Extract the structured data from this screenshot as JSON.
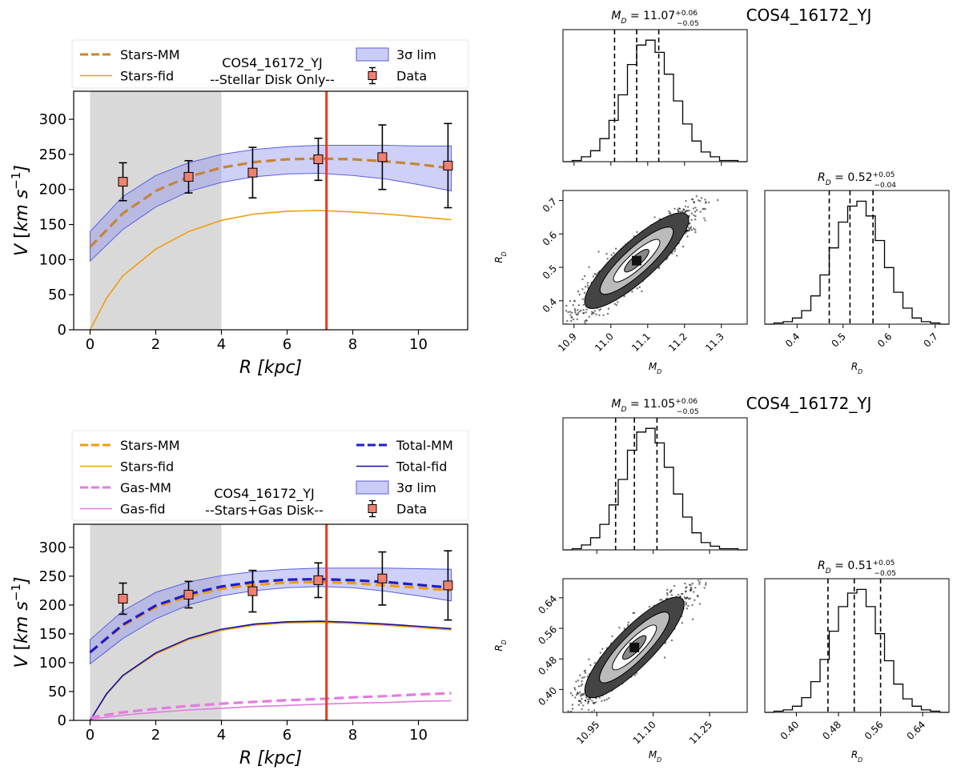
{
  "chart_data": [
    {
      "type": "line",
      "panel": "top-left",
      "title_lines": [
        "COS4_16172_YJ",
        "--Stellar Disk Only--"
      ],
      "xlabel": "R [kpc]",
      "ylabel": "V [km s⁻¹]",
      "xlim": [
        -0.5,
        11.5
      ],
      "ylim": [
        0,
        340
      ],
      "xticks": [
        0,
        2,
        4,
        6,
        8,
        10
      ],
      "yticks": [
        0,
        50,
        100,
        150,
        200,
        250,
        300
      ],
      "shaded_region_x": [
        0,
        4
      ],
      "vline_x": 7.2,
      "data_points": {
        "name": "Data",
        "x": [
          1,
          3,
          4.95,
          6.95,
          8.9,
          10.9
        ],
        "y": [
          211,
          218,
          224,
          243,
          246,
          234
        ],
        "yerr": [
          27,
          23,
          36,
          30,
          46,
          60
        ]
      },
      "series": [
        {
          "name": "Stars-MM",
          "style": "dashed",
          "color": "#c68436",
          "x": [
            0,
            1,
            2,
            3,
            4,
            5,
            6,
            7,
            8,
            9,
            10,
            11
          ],
          "y": [
            118,
            166,
            198,
            218,
            231,
            239,
            243,
            244,
            243,
            240,
            236,
            230
          ]
        },
        {
          "name": "Stars-fid",
          "style": "solid",
          "color": "#f29c0f",
          "x": [
            0,
            0.5,
            1,
            2,
            3,
            4,
            5,
            6,
            7,
            8,
            9,
            10,
            11
          ],
          "y": [
            0,
            45,
            77,
            115,
            140,
            156,
            165,
            169,
            170,
            168,
            165,
            161,
            157
          ]
        }
      ],
      "band": {
        "name": "3σ lim",
        "color": "#8a8fef",
        "x": [
          0,
          1,
          2,
          3,
          4,
          5,
          6,
          7,
          8,
          9,
          10,
          11
        ],
        "lower": [
          98,
          143,
          175,
          197,
          210,
          218,
          222,
          223,
          220,
          215,
          207,
          198
        ],
        "upper": [
          140,
          190,
          220,
          238,
          250,
          257,
          261,
          263,
          263,
          263,
          262,
          262
        ]
      },
      "legend_left": [
        "Stars-MM",
        "Stars-fid"
      ],
      "legend_right": [
        "3σ lim",
        "Data"
      ]
    },
    {
      "type": "corner",
      "panel": "top-right",
      "title": "COS4_16172_YJ",
      "param_titles": [
        {
          "label": "M_D",
          "value": "11.07",
          "plus": "+0.06",
          "minus": "−0.05"
        },
        {
          "label": "R_D",
          "value": "0.52",
          "plus": "+0.05",
          "minus": "−0.04"
        }
      ],
      "axis_labels": [
        "M_D",
        "R_D"
      ],
      "m_range": [
        10.87,
        11.37
      ],
      "m_ticks": [
        10.9,
        11.0,
        11.1,
        11.2,
        11.3
      ],
      "m_tick_labels": [
        "10.9",
        "11.0",
        "11.1",
        "11.2",
        "11.3"
      ],
      "r_range": [
        0.33,
        0.73
      ],
      "r_ticks": [
        0.4,
        0.5,
        0.6,
        0.7
      ],
      "r_tick_labels": [
        "0.4",
        "0.5",
        "0.6",
        "0.7"
      ],
      "m_hist": [
        0,
        0.01,
        0.04,
        0.09,
        0.19,
        0.34,
        0.55,
        0.8,
        0.96,
        1.0,
        0.9,
        0.72,
        0.5,
        0.31,
        0.17,
        0.08,
        0.04,
        0.01,
        0.01,
        0
      ],
      "r_hist": [
        0,
        0.01,
        0.02,
        0.05,
        0.11,
        0.23,
        0.4,
        0.62,
        0.83,
        0.96,
        1.0,
        0.88,
        0.68,
        0.46,
        0.26,
        0.13,
        0.05,
        0.02,
        0.01,
        0
      ],
      "m_quantiles": [
        11.01,
        11.07,
        11.13
      ],
      "r_quantiles": [
        0.47,
        0.515,
        0.565
      ],
      "joint_center": [
        11.07,
        0.52
      ],
      "joint_slope": 1.0
    },
    {
      "type": "line",
      "panel": "bottom-left",
      "title_lines": [
        "COS4_16172_YJ",
        "--Stars+Gas Disk--"
      ],
      "xlabel": "R [kpc]",
      "ylabel": "V [km s⁻¹]",
      "xlim": [
        -0.5,
        11.5
      ],
      "ylim": [
        0,
        340
      ],
      "xticks": [
        0,
        2,
        4,
        6,
        8,
        10
      ],
      "yticks": [
        0,
        50,
        100,
        150,
        200,
        250,
        300
      ],
      "shaded_region_x": [
        0,
        4
      ],
      "vline_x": 7.2,
      "data_points": {
        "name": "Data",
        "x": [
          1,
          3,
          4.95,
          6.95,
          8.9,
          10.9
        ],
        "y": [
          211,
          218,
          224,
          243,
          246,
          234
        ],
        "yerr": [
          27,
          23,
          36,
          30,
          46,
          60
        ]
      },
      "series": [
        {
          "name": "Stars-MM",
          "style": "dashed",
          "color": "#f29c0f",
          "x": [
            0,
            1,
            2,
            3,
            4,
            5,
            6,
            7,
            8,
            9,
            10,
            11
          ],
          "y": [
            118,
            164,
            196,
            215,
            228,
            235,
            239,
            240,
            238,
            234,
            230,
            225
          ]
        },
        {
          "name": "Stars-fid",
          "style": "solid",
          "color": "#f29c0f",
          "x": [
            0,
            0.5,
            1,
            2,
            3,
            4,
            5,
            6,
            7,
            8,
            9,
            10,
            11
          ],
          "y": [
            0,
            45,
            77,
            115,
            140,
            156,
            165,
            169,
            170,
            168,
            165,
            161,
            157
          ]
        },
        {
          "name": "Gas-MM",
          "style": "dashed",
          "color": "#e27ce0",
          "x": [
            0,
            1,
            2,
            3,
            4,
            5,
            6,
            7,
            8,
            9,
            10,
            11
          ],
          "y": [
            5,
            14,
            20,
            25,
            29,
            32,
            35,
            37,
            40,
            42,
            45,
            47
          ]
        },
        {
          "name": "Gas-fid",
          "style": "solid",
          "color": "#e27ce0",
          "x": [
            0,
            1,
            2,
            3,
            4,
            5,
            6,
            7,
            8,
            9,
            10,
            11
          ],
          "y": [
            2,
            9,
            14,
            18,
            21,
            24,
            26,
            28,
            30,
            31,
            33,
            34
          ]
        },
        {
          "name": "Total-MM",
          "style": "dashed",
          "color": "#1c1ccf",
          "x": [
            0,
            1,
            2,
            3,
            4,
            5,
            6,
            7,
            8,
            9,
            10,
            11
          ],
          "y": [
            118,
            166,
            199,
            219,
            232,
            240,
            244,
            245,
            243,
            240,
            235,
            230
          ]
        },
        {
          "name": "Total-fid",
          "style": "solid",
          "color": "#1010a8",
          "x": [
            0,
            0.5,
            1,
            2,
            3,
            4,
            5,
            6,
            7,
            8,
            9,
            10,
            11
          ],
          "y": [
            0,
            46,
            78,
            117,
            142,
            158,
            167,
            171,
            172,
            170,
            167,
            163,
            159
          ]
        }
      ],
      "band": {
        "name": "3σ lim",
        "color": "#8a8fef",
        "x": [
          0,
          1,
          2,
          3,
          4,
          5,
          6,
          7,
          8,
          9,
          10,
          11
        ],
        "lower": [
          98,
          142,
          176,
          200,
          216,
          225,
          230,
          232,
          230,
          224,
          216,
          207
        ],
        "upper": [
          140,
          190,
          222,
          240,
          251,
          258,
          262,
          264,
          264,
          264,
          263,
          262
        ]
      },
      "legend_left": [
        "Stars-MM",
        "Stars-fid",
        "Gas-MM",
        "Gas-fid"
      ],
      "legend_right": [
        "Total-MM",
        "Total-fid",
        "3σ lim",
        "Data"
      ]
    },
    {
      "type": "corner",
      "panel": "bottom-right",
      "title": "COS4_16172_YJ",
      "param_titles": [
        {
          "label": "M_D",
          "value": "11.05",
          "plus": "+0.06",
          "minus": "−0.05"
        },
        {
          "label": "R_D",
          "value": "0.51",
          "plus": "+0.05",
          "minus": "−0.05"
        }
      ],
      "axis_labels": [
        "M_D",
        "R_D"
      ],
      "m_range": [
        10.86,
        11.35
      ],
      "m_ticks": [
        10.95,
        11.1,
        11.25
      ],
      "m_tick_labels": [
        "10.95",
        "11.10",
        "11.25"
      ],
      "r_range": [
        0.34,
        0.69
      ],
      "r_ticks": [
        0.4,
        0.48,
        0.56,
        0.64
      ],
      "r_tick_labels": [
        "0.40",
        "0.48",
        "0.56",
        "0.64"
      ],
      "m_hist": [
        0,
        0.01,
        0.04,
        0.1,
        0.21,
        0.37,
        0.58,
        0.82,
        0.97,
        1.0,
        0.88,
        0.68,
        0.46,
        0.27,
        0.14,
        0.06,
        0.03,
        0.01,
        0.01,
        0
      ],
      "r_hist": [
        0,
        0.01,
        0.02,
        0.05,
        0.12,
        0.25,
        0.43,
        0.66,
        0.86,
        0.97,
        1.0,
        0.86,
        0.64,
        0.42,
        0.23,
        0.11,
        0.05,
        0.02,
        0.01,
        0
      ],
      "m_quantiles": [
        11.0,
        11.05,
        11.11
      ],
      "r_quantiles": [
        0.46,
        0.51,
        0.56
      ],
      "joint_center": [
        11.05,
        0.51
      ],
      "joint_slope": 1.0
    }
  ]
}
